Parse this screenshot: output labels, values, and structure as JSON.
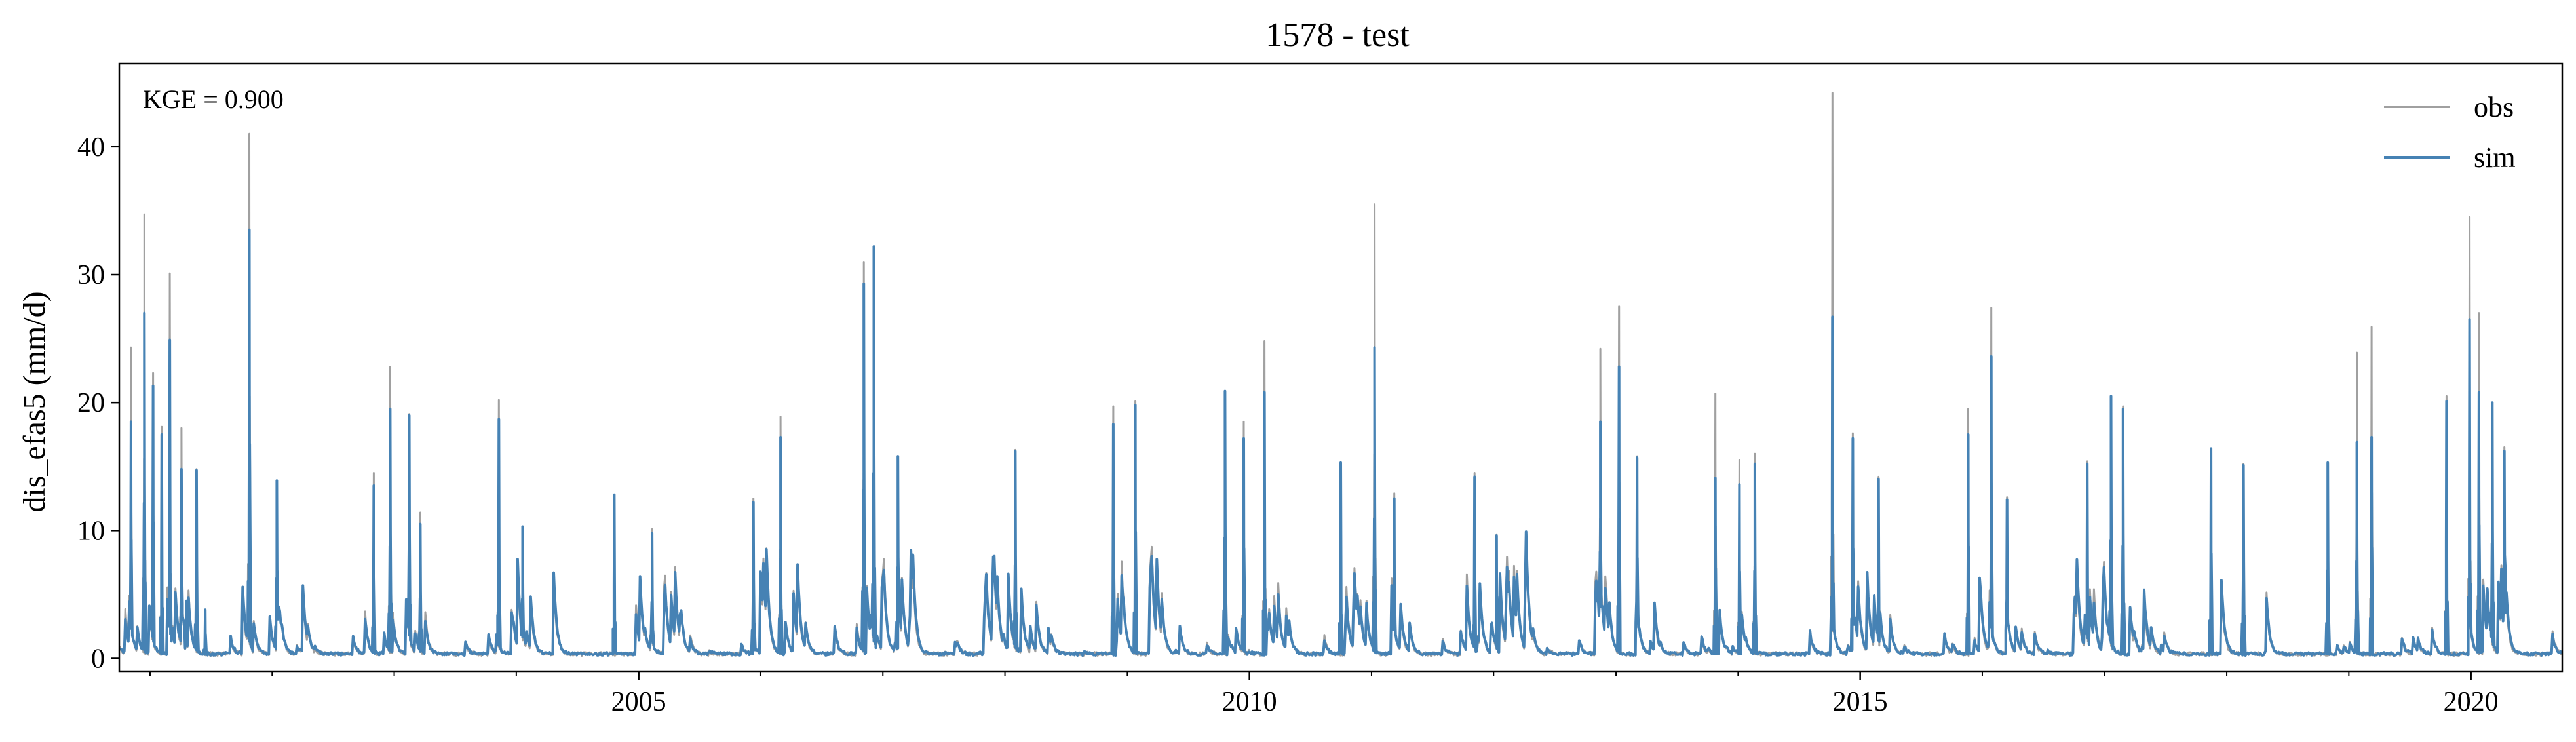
{
  "chart_data": {
    "type": "line",
    "title": "1578 - test",
    "xlabel": "",
    "ylabel": "dis_efas5 (mm/d)",
    "x_range": [
      "2000-10-01",
      "2020-09-30"
    ],
    "ylim": [
      -1,
      46.5
    ],
    "x_ticks": [
      "2005",
      "2010",
      "2015",
      "2020"
    ],
    "y_ticks": [
      0,
      10,
      20,
      30,
      40
    ],
    "grid": false,
    "legend_position": "top-right",
    "annotation": "KGE = 0.900",
    "colors": {
      "obs": "#a0a0a0",
      "sim": "#4682b4"
    },
    "series": [
      {
        "name": "obs",
        "x": [
          "2000-11-05",
          "2000-12-15",
          "2001-01-10",
          "2001-02-05",
          "2001-03-01",
          "2001-04-05",
          "2001-04-20",
          "2001-05-20",
          "2001-06-15",
          "2001-10-25",
          "2002-01-15",
          "2002-11-01",
          "2002-12-20",
          "2003-02-15",
          "2003-03-20",
          "2003-11-10",
          "2004-01-20",
          "2004-10-20",
          "2005-02-10",
          "2005-12-10",
          "2006-03-01",
          "2006-11-05",
          "2006-12-05",
          "2007-02-15",
          "2008-02-01",
          "2008-11-20",
          "2009-01-25",
          "2009-10-20",
          "2009-12-15",
          "2010-02-15",
          "2010-10-01",
          "2011-01-10",
          "2011-03-10",
          "2011-11-05",
          "2012-01-10",
          "2012-11-15",
          "2013-01-10",
          "2013-03-05",
          "2013-10-25",
          "2014-01-05",
          "2014-02-20",
          "2014-10-10",
          "2014-12-10",
          "2015-02-25",
          "2015-11-20",
          "2016-01-28",
          "2016-03-15",
          "2016-11-10",
          "2017-01-20",
          "2017-02-25",
          "2017-11-15",
          "2018-02-20",
          "2018-10-30",
          "2019-01-25",
          "2019-03-10",
          "2019-10-20",
          "2019-12-28",
          "2020-01-25",
          "2020-03-05",
          "2020-04-10"
        ],
        "values": [
          24.3,
          34.7,
          22.3,
          18.1,
          30.1,
          18.0,
          4.1,
          14.8,
          3.5,
          41.0,
          13.9,
          14.5,
          22.8,
          19.1,
          11.4,
          20.2,
          10.3,
          12.8,
          10.1,
          12.5,
          18.9,
          31.0,
          24.0,
          15.8,
          16.3,
          19.7,
          20.1,
          19.3,
          18.5,
          24.8,
          14.5,
          35.5,
          12.9,
          14.5,
          9.7,
          24.2,
          27.5,
          15.8,
          20.7,
          15.5,
          16.0,
          44.2,
          17.6,
          14.2,
          19.5,
          27.4,
          12.6,
          15.4,
          20.5,
          19.7,
          16.4,
          15.2,
          14.9,
          23.9,
          25.9,
          20.5,
          34.5,
          27.0,
          20.0,
          16.5
        ]
      },
      {
        "name": "sim",
        "x": [
          "2000-11-05",
          "2000-12-15",
          "2001-01-10",
          "2001-02-05",
          "2001-03-01",
          "2001-04-05",
          "2001-04-20",
          "2001-05-20",
          "2001-06-15",
          "2001-10-25",
          "2002-01-15",
          "2002-11-01",
          "2002-12-20",
          "2003-02-15",
          "2003-03-20",
          "2003-11-10",
          "2004-01-20",
          "2004-10-20",
          "2005-02-10",
          "2005-12-10",
          "2006-03-01",
          "2006-11-05",
          "2006-12-05",
          "2007-02-15",
          "2008-02-01",
          "2008-11-20",
          "2009-01-25",
          "2009-10-20",
          "2009-12-15",
          "2010-02-15",
          "2010-10-01",
          "2011-01-10",
          "2011-03-10",
          "2011-11-05",
          "2012-01-10",
          "2012-11-15",
          "2013-01-10",
          "2013-03-05",
          "2013-10-25",
          "2014-01-05",
          "2014-02-20",
          "2014-10-10",
          "2014-12-10",
          "2015-02-25",
          "2015-11-20",
          "2016-01-28",
          "2016-03-15",
          "2016-11-10",
          "2017-01-20",
          "2017-02-25",
          "2017-11-15",
          "2018-02-20",
          "2018-10-30",
          "2019-01-25",
          "2019-03-10",
          "2019-10-20",
          "2019-12-28",
          "2020-01-25",
          "2020-03-05",
          "2020-04-10"
        ],
        "values": [
          18.5,
          27.0,
          21.3,
          17.5,
          24.9,
          14.8,
          4.5,
          14.7,
          3.8,
          33.5,
          13.9,
          13.5,
          19.5,
          19.0,
          10.5,
          18.7,
          10.3,
          12.8,
          9.8,
          12.2,
          17.3,
          29.3,
          32.2,
          15.8,
          16.2,
          18.3,
          19.8,
          20.9,
          17.2,
          20.8,
          15.3,
          24.3,
          12.5,
          14.2,
          9.6,
          18.5,
          22.8,
          15.7,
          14.1,
          13.6,
          15.2,
          26.7,
          17.2,
          14.0,
          17.5,
          23.6,
          12.4,
          15.2,
          20.5,
          19.5,
          16.4,
          15.1,
          15.3,
          16.9,
          17.3,
          20.1,
          26.5,
          20.8,
          20.0,
          16.2
        ]
      }
    ]
  }
}
